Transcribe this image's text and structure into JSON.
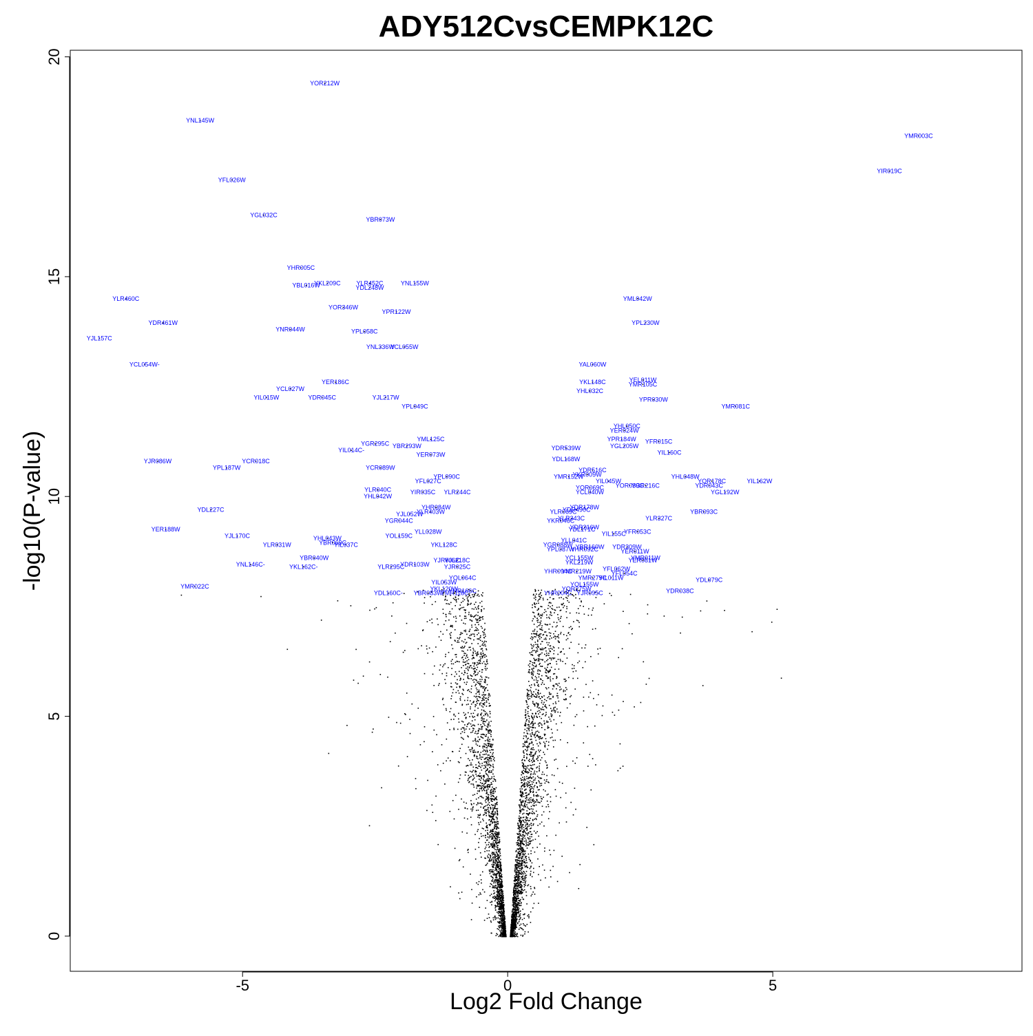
{
  "chart_data": {
    "type": "scatter",
    "title": "ADY512CvsCEMPK12C",
    "xlabel": "Log2 Fold Change",
    "ylabel": "-log10(P-value)",
    "xlim": [
      -8.25,
      9.7
    ],
    "ylim": [
      -0.8,
      20.15
    ],
    "xticks": [
      -5,
      0,
      5
    ],
    "yticks": [
      0,
      5,
      10,
      15,
      20
    ],
    "grid": false,
    "legend": "none",
    "colors": {
      "points": "#000000",
      "labels": "#0000ff",
      "axis": "#000000"
    },
    "labeled_genes": [
      {
        "label": "YOR212W",
        "x": -3.45,
        "y": 19.4
      },
      {
        "label": "YNL145W",
        "x": -5.8,
        "y": 18.55
      },
      {
        "label": "YFL026W",
        "x": -5.2,
        "y": 17.2
      },
      {
        "label": "YGL032C",
        "x": -4.6,
        "y": 16.4
      },
      {
        "label": "YBR073W",
        "x": -2.4,
        "y": 16.3
      },
      {
        "label": "YHR005C",
        "x": -3.9,
        "y": 15.2
      },
      {
        "label": "YBL016W",
        "x": -3.8,
        "y": 14.8
      },
      {
        "label": "YKL209C",
        "x": -3.4,
        "y": 14.85
      },
      {
        "label": "YLR452C",
        "x": -2.6,
        "y": 14.85
      },
      {
        "label": "YDL248W",
        "x": -2.6,
        "y": 14.75
      },
      {
        "label": "YNL155W",
        "x": -1.75,
        "y": 14.85
      },
      {
        "label": "YLR460C",
        "x": -7.2,
        "y": 14.5
      },
      {
        "label": "YOR346W",
        "x": -3.1,
        "y": 14.3
      },
      {
        "label": "YPR122W",
        "x": -2.1,
        "y": 14.2
      },
      {
        "label": "YDR461W",
        "x": -6.5,
        "y": 13.95
      },
      {
        "label": "YNR044W",
        "x": -4.1,
        "y": 13.8
      },
      {
        "label": "YPL058C",
        "x": -2.7,
        "y": 13.75
      },
      {
        "label": "YJL157C",
        "x": -7.7,
        "y": 13.6
      },
      {
        "label": "YNL336W",
        "x": -2.4,
        "y": 13.4
      },
      {
        "label": "YCL055W",
        "x": -1.95,
        "y": 13.4
      },
      {
        "label": "YCL054W-",
        "x": -6.85,
        "y": 13.0
      },
      {
        "label": "YER186C",
        "x": -3.25,
        "y": 12.6
      },
      {
        "label": "YCL027W",
        "x": -4.1,
        "y": 12.45
      },
      {
        "label": "YIL015W",
        "x": -4.55,
        "y": 12.25
      },
      {
        "label": "YDR045C",
        "x": -3.5,
        "y": 12.25
      },
      {
        "label": "YJL217W",
        "x": -2.3,
        "y": 12.25
      },
      {
        "label": "YPL049C",
        "x": -1.75,
        "y": 12.05
      },
      {
        "label": "YML125C",
        "x": -1.45,
        "y": 11.3
      },
      {
        "label": "YGR295C",
        "x": -2.5,
        "y": 11.2
      },
      {
        "label": "YBR293W",
        "x": -1.9,
        "y": 11.15
      },
      {
        "label": "YIL014C-",
        "x": -2.95,
        "y": 11.05
      },
      {
        "label": "YER073W",
        "x": -1.45,
        "y": 10.95
      },
      {
        "label": "YJR086W",
        "x": -6.6,
        "y": 10.8
      },
      {
        "label": "YCR018C",
        "x": -4.75,
        "y": 10.8
      },
      {
        "label": "YPL187W",
        "x": -5.3,
        "y": 10.65
      },
      {
        "label": "YCR089W",
        "x": -2.4,
        "y": 10.65
      },
      {
        "label": "YPL090C",
        "x": -1.15,
        "y": 10.45
      },
      {
        "label": "YFL027C",
        "x": -1.5,
        "y": 10.35
      },
      {
        "label": "YLR040C",
        "x": -2.45,
        "y": 10.15
      },
      {
        "label": "YHL042W",
        "x": -2.45,
        "y": 10.0
      },
      {
        "label": "YIR035C",
        "x": -1.6,
        "y": 10.1
      },
      {
        "label": "YLR244C",
        "x": -0.95,
        "y": 10.1
      },
      {
        "label": "YDL227C",
        "x": -5.6,
        "y": 9.7
      },
      {
        "label": "YHR084W",
        "x": -1.35,
        "y": 9.75
      },
      {
        "label": "YJL052W",
        "x": -1.85,
        "y": 9.6
      },
      {
        "label": "YLR403W",
        "x": -1.45,
        "y": 9.65
      },
      {
        "label": "YGR044C",
        "x": -2.05,
        "y": 9.45
      },
      {
        "label": "YER188W",
        "x": -6.45,
        "y": 9.25
      },
      {
        "label": "YLL028W",
        "x": -1.5,
        "y": 9.2
      },
      {
        "label": "YJL170C",
        "x": -5.1,
        "y": 9.1
      },
      {
        "label": "YHL043W",
        "x": -3.4,
        "y": 9.05
      },
      {
        "label": "YOL159C",
        "x": -2.05,
        "y": 9.1
      },
      {
        "label": "YBR069C",
        "x": -3.3,
        "y": 8.95
      },
      {
        "label": "YIL037C",
        "x": -3.05,
        "y": 8.9
      },
      {
        "label": "YLR031W",
        "x": -4.35,
        "y": 8.9
      },
      {
        "label": "YKL128C",
        "x": -1.2,
        "y": 8.9
      },
      {
        "label": "YBR040W",
        "x": -3.65,
        "y": 8.6
      },
      {
        "label": "YJR006C",
        "x": -1.15,
        "y": 8.55
      },
      {
        "label": "YJL218C",
        "x": -0.95,
        "y": 8.55
      },
      {
        "label": "YDR103W",
        "x": -1.75,
        "y": 8.45
      },
      {
        "label": "YLR295C",
        "x": -2.2,
        "y": 8.4
      },
      {
        "label": "YJR025C",
        "x": -0.95,
        "y": 8.4
      },
      {
        "label": "YNL146C-",
        "x": -4.85,
        "y": 8.45
      },
      {
        "label": "YKL162C-",
        "x": -3.85,
        "y": 8.4
      },
      {
        "label": "YOL064C",
        "x": -0.85,
        "y": 8.15
      },
      {
        "label": "YIL053W",
        "x": -1.2,
        "y": 8.05
      },
      {
        "label": "YKL120W",
        "x": -1.2,
        "y": 7.9
      },
      {
        "label": "YHR166C",
        "x": -0.85,
        "y": 7.85
      },
      {
        "label": "YMR022C",
        "x": -5.9,
        "y": 7.95
      },
      {
        "label": "YDL160C-",
        "x": -2.25,
        "y": 7.8
      },
      {
        "label": "YBR083W",
        "x": -1.5,
        "y": 7.8
      },
      {
        "label": "YMR118C",
        "x": -1.0,
        "y": 7.8
      },
      {
        "label": "YMR003C",
        "x": 7.75,
        "y": 18.2
      },
      {
        "label": "YIR019C",
        "x": 7.2,
        "y": 17.4
      },
      {
        "label": "YML042W",
        "x": 2.45,
        "y": 14.5
      },
      {
        "label": "YPL230W",
        "x": 2.6,
        "y": 13.95
      },
      {
        "label": "YAL060W",
        "x": 1.6,
        "y": 13.0
      },
      {
        "label": "YKL148C",
        "x": 1.6,
        "y": 12.6
      },
      {
        "label": "YEL011W",
        "x": 2.55,
        "y": 12.65
      },
      {
        "label": "YMR105C",
        "x": 2.55,
        "y": 12.55
      },
      {
        "label": "YHL032C",
        "x": 1.55,
        "y": 12.4
      },
      {
        "label": "YPR030W",
        "x": 2.75,
        "y": 12.2
      },
      {
        "label": "YMR081C",
        "x": 4.3,
        "y": 12.05
      },
      {
        "label": "YHL050C",
        "x": 2.25,
        "y": 11.6
      },
      {
        "label": "YER024W",
        "x": 2.2,
        "y": 11.5
      },
      {
        "label": "YPR184W",
        "x": 2.15,
        "y": 11.3
      },
      {
        "label": "YFR015C",
        "x": 2.85,
        "y": 11.25
      },
      {
        "label": "YGL205W",
        "x": 2.2,
        "y": 11.15
      },
      {
        "label": "YDR539W",
        "x": 1.1,
        "y": 11.1
      },
      {
        "label": "YIL160C",
        "x": 3.05,
        "y": 11.0
      },
      {
        "label": "YDL168W",
        "x": 1.1,
        "y": 10.85
      },
      {
        "label": "YDR516C",
        "x": 1.6,
        "y": 10.6
      },
      {
        "label": "YKR009W",
        "x": 1.5,
        "y": 10.5
      },
      {
        "label": "YMR152W",
        "x": 1.15,
        "y": 10.45
      },
      {
        "label": "YHL048W",
        "x": 3.35,
        "y": 10.45
      },
      {
        "label": "YIL162W",
        "x": 4.75,
        "y": 10.35
      },
      {
        "label": "YOR178C",
        "x": 3.85,
        "y": 10.35
      },
      {
        "label": "YIL045W",
        "x": 1.9,
        "y": 10.35
      },
      {
        "label": "YDR043C",
        "x": 3.8,
        "y": 10.25
      },
      {
        "label": "YOR039C",
        "x": 2.3,
        "y": 10.25
      },
      {
        "label": "YGR216C",
        "x": 2.6,
        "y": 10.25
      },
      {
        "label": "YOR069C",
        "x": 1.55,
        "y": 10.2
      },
      {
        "label": "YGL192W",
        "x": 4.1,
        "y": 10.1
      },
      {
        "label": "YCL040W",
        "x": 1.55,
        "y": 10.1
      },
      {
        "label": "YDR178W",
        "x": 1.45,
        "y": 9.75
      },
      {
        "label": "YDR490C",
        "x": 1.3,
        "y": 9.7
      },
      {
        "label": "YLR069C",
        "x": 1.05,
        "y": 9.65
      },
      {
        "label": "YBR093C",
        "x": 3.7,
        "y": 9.65
      },
      {
        "label": "YLR327C",
        "x": 2.85,
        "y": 9.5
      },
      {
        "label": "YLR343C",
        "x": 1.2,
        "y": 9.5
      },
      {
        "label": "YKR046C",
        "x": 1.0,
        "y": 9.45
      },
      {
        "label": "YDR216W",
        "x": 1.45,
        "y": 9.3
      },
      {
        "label": "YDL171C",
        "x": 1.4,
        "y": 9.25
      },
      {
        "label": "YIL155C",
        "x": 2.0,
        "y": 9.15
      },
      {
        "label": "YFR053C",
        "x": 2.45,
        "y": 9.2
      },
      {
        "label": "YLL041C",
        "x": 1.25,
        "y": 9.0
      },
      {
        "label": "YGR088W",
        "x": 0.95,
        "y": 8.9
      },
      {
        "label": "YBR160W",
        "x": 1.55,
        "y": 8.85
      },
      {
        "label": "YDR309W",
        "x": 2.25,
        "y": 8.85
      },
      {
        "label": "YPL087W",
        "x": 1.0,
        "y": 8.8
      },
      {
        "label": "YHR092C",
        "x": 1.45,
        "y": 8.8
      },
      {
        "label": "YER011W",
        "x": 2.4,
        "y": 8.75
      },
      {
        "label": "YCL155W",
        "x": 1.35,
        "y": 8.6
      },
      {
        "label": "YMR011W",
        "x": 2.6,
        "y": 8.6
      },
      {
        "label": "YER081W",
        "x": 2.55,
        "y": 8.55
      },
      {
        "label": "YKL219W",
        "x": 1.35,
        "y": 8.5
      },
      {
        "label": "YFL062W",
        "x": 2.05,
        "y": 8.35
      },
      {
        "label": "YHR094C",
        "x": 0.95,
        "y": 8.3
      },
      {
        "label": "YMR219W",
        "x": 1.3,
        "y": 8.3
      },
      {
        "label": "YFL054C",
        "x": 2.2,
        "y": 8.25
      },
      {
        "label": "YMR279C",
        "x": 1.6,
        "y": 8.15
      },
      {
        "label": "YIL011W",
        "x": 1.95,
        "y": 8.15
      },
      {
        "label": "YDL079C",
        "x": 3.8,
        "y": 8.1
      },
      {
        "label": "YOL155W",
        "x": 1.45,
        "y": 8.0
      },
      {
        "label": "YOR275W",
        "x": 1.3,
        "y": 7.9
      },
      {
        "label": "YDR038C",
        "x": 3.25,
        "y": 7.85
      },
      {
        "label": "YHR004C",
        "x": 0.95,
        "y": 7.8
      },
      {
        "label": "YJR095C",
        "x": 1.55,
        "y": 7.8
      }
    ]
  }
}
